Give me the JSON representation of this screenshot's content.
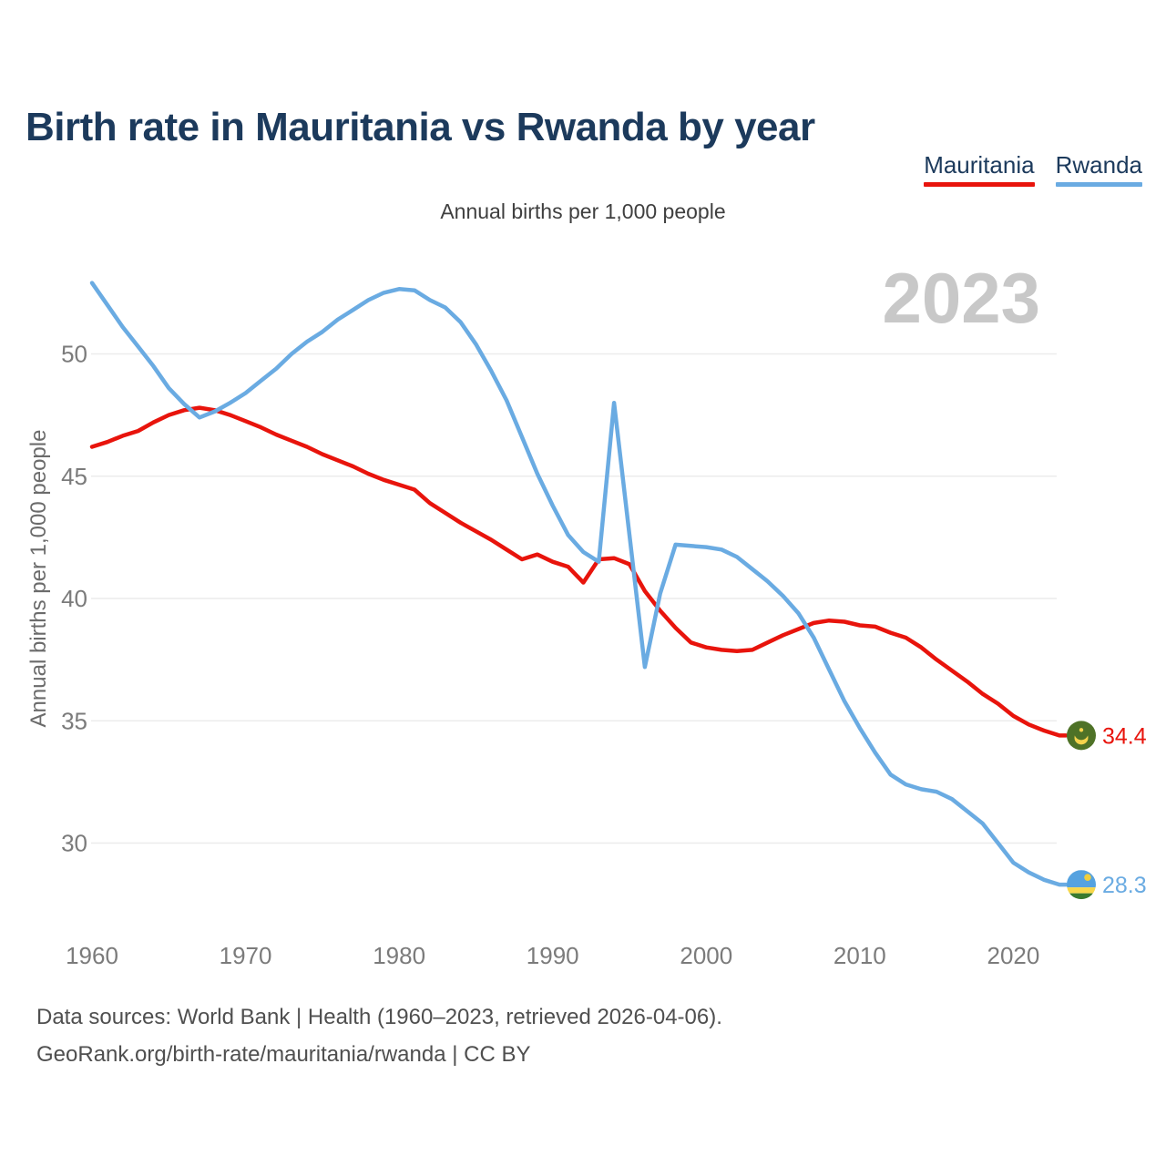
{
  "chart_data": {
    "type": "line",
    "title": "Birth rate in Mauritania vs Rwanda by year",
    "subtitle": "Annual births per 1,000 people",
    "ylabel": "Annual births per 1,000 people",
    "watermark": "2023",
    "grid": "horizontal",
    "legend_position": "top-right",
    "x_ticks": [
      1960,
      1970,
      1980,
      1990,
      2000,
      2010,
      2020
    ],
    "y_ticks": [
      30,
      35,
      40,
      45,
      50
    ],
    "xlim": [
      1960,
      2023
    ],
    "ylim": [
      26.5,
      54
    ],
    "x": [
      1960,
      1961,
      1962,
      1963,
      1964,
      1965,
      1966,
      1967,
      1968,
      1969,
      1970,
      1971,
      1972,
      1973,
      1974,
      1975,
      1976,
      1977,
      1978,
      1979,
      1980,
      1981,
      1982,
      1983,
      1984,
      1985,
      1986,
      1987,
      1988,
      1989,
      1990,
      1991,
      1992,
      1993,
      1994,
      1995,
      1996,
      1997,
      1998,
      1999,
      2000,
      2001,
      2002,
      2003,
      2004,
      2005,
      2006,
      2007,
      2008,
      2009,
      2010,
      2011,
      2012,
      2013,
      2014,
      2015,
      2016,
      2017,
      2018,
      2019,
      2020,
      2021,
      2022,
      2023
    ],
    "series": [
      {
        "name": "Mauritania",
        "color": "#e8140c",
        "end_label": "34.4",
        "end_value": 34.4,
        "flag": "mauritania",
        "values": [
          46.2,
          46.4,
          46.65,
          46.85,
          47.2,
          47.5,
          47.7,
          47.8,
          47.7,
          47.5,
          47.25,
          47.0,
          46.7,
          46.45,
          46.2,
          45.9,
          45.65,
          45.4,
          45.1,
          44.85,
          44.65,
          44.45,
          43.9,
          43.5,
          43.1,
          42.75,
          42.4,
          42.0,
          41.6,
          41.8,
          41.5,
          41.3,
          40.65,
          41.6,
          41.65,
          41.4,
          40.3,
          39.5,
          38.8,
          38.2,
          38.0,
          37.9,
          37.85,
          37.9,
          38.2,
          38.5,
          38.75,
          39.0,
          39.1,
          39.05,
          38.9,
          38.85,
          38.6,
          38.4,
          38.0,
          37.5,
          37.05,
          36.6,
          36.1,
          35.7,
          35.2,
          34.85,
          34.6,
          34.4
        ]
      },
      {
        "name": "Rwanda",
        "color": "#6aabe2",
        "end_label": "28.3",
        "end_value": 28.3,
        "flag": "rwanda",
        "values": [
          52.9,
          52.0,
          51.1,
          50.3,
          49.5,
          48.6,
          47.95,
          47.4,
          47.65,
          48.0,
          48.4,
          48.9,
          49.4,
          50.0,
          50.5,
          50.9,
          51.4,
          51.8,
          52.2,
          52.5,
          52.65,
          52.6,
          52.2,
          51.9,
          51.3,
          50.4,
          49.3,
          48.1,
          46.6,
          45.1,
          43.8,
          42.6,
          41.9,
          41.5,
          48.0,
          42.6,
          37.2,
          40.2,
          42.2,
          42.15,
          42.1,
          42.0,
          41.7,
          41.2,
          40.7,
          40.1,
          39.4,
          38.4,
          37.1,
          35.8,
          34.7,
          33.7,
          32.8,
          32.4,
          32.2,
          32.1,
          31.8,
          31.3,
          30.8,
          30.0,
          29.2,
          28.8,
          28.5,
          28.3
        ]
      }
    ],
    "colors": {
      "grid": "#ececec",
      "tick_label": "#7b7b7b",
      "mauritania_flag_bg": "#4e7227",
      "mauritania_flag_emblem": "#f5d34c",
      "rwanda_flag_blue": "#55a2e0",
      "rwanda_flag_yellow": "#f7d74a",
      "rwanda_flag_green": "#3a7a2e",
      "rwanda_flag_sun": "#f0ce3c"
    }
  },
  "footer": {
    "line1": "Data sources: World Bank | Health (1960–2023, retrieved 2026-04-06).",
    "line2": "GeoRank.org/birth-rate/mauritania/rwanda | CC BY"
  }
}
